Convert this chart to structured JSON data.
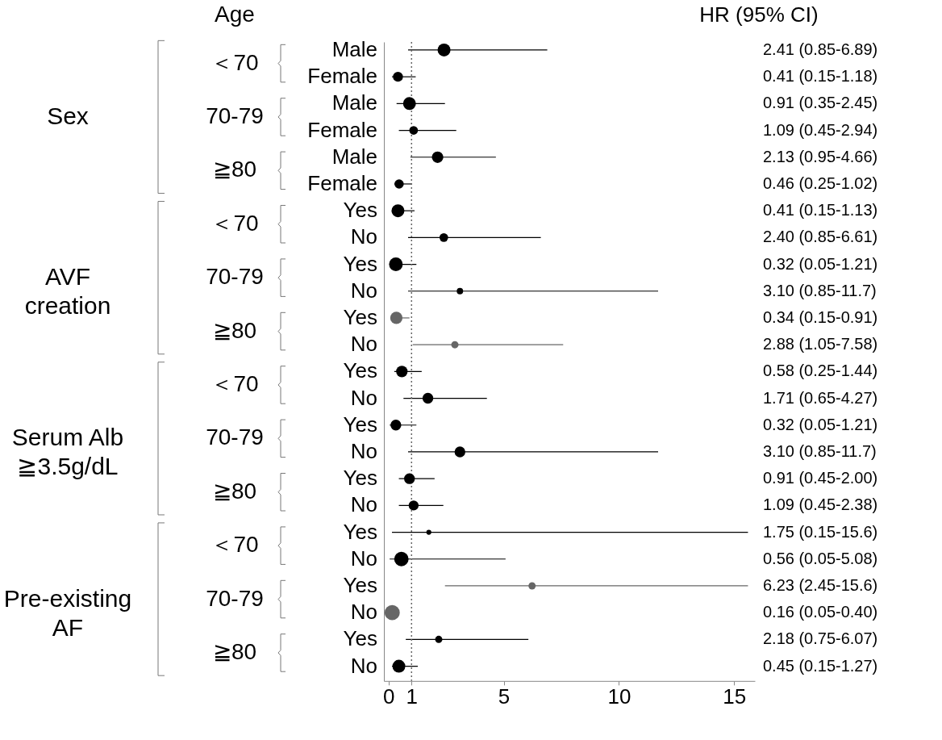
{
  "chart_data": {
    "type": "bubble",
    "orientation": "horizontal",
    "marker": "circle",
    "categories": [
      "Male",
      "Female",
      "Male",
      "Female",
      "Male",
      "Female",
      "Yes",
      "No",
      "Yes",
      "No",
      "Yes",
      "No",
      "Yes",
      "No",
      "Yes",
      "No",
      "Yes",
      "No",
      "Yes",
      "No",
      "Yes",
      "No",
      "Yes",
      "No"
    ],
    "values": [
      2.41,
      0.41,
      0.91,
      1.09,
      2.13,
      0.46,
      0.41,
      2.4,
      0.32,
      3.1,
      0.34,
      2.88,
      0.58,
      1.71,
      0.32,
      3.1,
      0.91,
      1.09,
      1.75,
      0.56,
      6.23,
      0.16,
      2.18,
      0.45
    ],
    "errors": [
      [
        0.85,
        6.89
      ],
      [
        0.15,
        1.18
      ],
      [
        0.35,
        2.45
      ],
      [
        0.45,
        2.94
      ],
      [
        0.95,
        4.66
      ],
      [
        0.25,
        1.02
      ],
      [
        0.15,
        1.13
      ],
      [
        0.85,
        6.61
      ],
      [
        0.05,
        1.21
      ],
      [
        0.85,
        11.7
      ],
      [
        0.15,
        0.91
      ],
      [
        1.05,
        7.58
      ],
      [
        0.25,
        1.44
      ],
      [
        0.65,
        4.27
      ],
      [
        0.05,
        1.21
      ],
      [
        0.85,
        11.7
      ],
      [
        0.45,
        2.0
      ],
      [
        0.45,
        2.38
      ],
      [
        0.15,
        15.6
      ],
      [
        0.05,
        5.08
      ],
      [
        2.45,
        15.6
      ],
      null,
      [
        0.75,
        6.07
      ],
      [
        0.15,
        1.27
      ]
    ],
    "sizes": [
      0.73,
      0.44,
      0.73,
      0.33,
      0.58,
      0.38,
      0.73,
      0.33,
      0.82,
      0.18,
      0.66,
      0.23,
      0.58,
      0.51,
      0.51,
      0.51,
      0.51,
      0.44,
      0.11,
      0.91,
      0.23,
      1,
      0.23,
      0.73
    ],
    "colors": [
      "#000000",
      "#000000",
      "#000000",
      "#000000",
      "#000000",
      "#000000",
      "#000000",
      "#000000",
      "#000000",
      "#000000",
      "#666666",
      "#666666",
      "#000000",
      "#000000",
      "#000000",
      "#000000",
      "#000000",
      "#000000",
      "#000000",
      "#000000",
      "#666666",
      "#666666",
      "#000000",
      "#000000"
    ],
    "value_labels": [
      "2.41 (0.85-6.89)",
      "0.41 (0.15-1.18)",
      "0.91 (0.35-2.45)",
      "1.09 (0.45-2.94)",
      "2.13 (0.95-4.66)",
      "0.46 (0.25-1.02)",
      "0.41 (0.15-1.13)",
      "2.40 (0.85-6.61)",
      "0.32 (0.05-1.21)",
      "3.10 (0.85-11.7)",
      "0.34 (0.15-0.91)",
      "2.88 (1.05-7.58)",
      "0.58 (0.25-1.44)",
      "1.71 (0.65-4.27)",
      "0.32 (0.05-1.21)",
      "3.10 (0.85-11.7)",
      "0.91 (0.45-2.00)",
      "1.09 (0.45-2.38)",
      "1.75 (0.15-15.6)",
      "0.56 (0.05-5.08)",
      "6.23 (2.45-15.6)",
      "0.16 (0.05-0.40)",
      "2.18 (0.75-6.07)",
      "0.45 (0.15-1.27)"
    ],
    "xlim": [
      -0.2,
      15.9
    ],
    "xticks": [
      0,
      1,
      5,
      10,
      15
    ],
    "ref_lines": [
      {
        "axis": "x",
        "value": 1,
        "line_style": "dotted",
        "color": "#666666"
      }
    ],
    "annotations": [
      "Age",
      "HR (95% CI)",
      "Sex",
      "＜70",
      "70-79",
      "≧80",
      "AVF\ncreation",
      "＜70",
      "70-79",
      "≧80",
      "Serum Alb\n≧3.5g/dL",
      "＜70",
      "70-79",
      "≧80",
      "Pre-existing\nAF",
      "＜70",
      "70-79",
      "≧80"
    ]
  }
}
